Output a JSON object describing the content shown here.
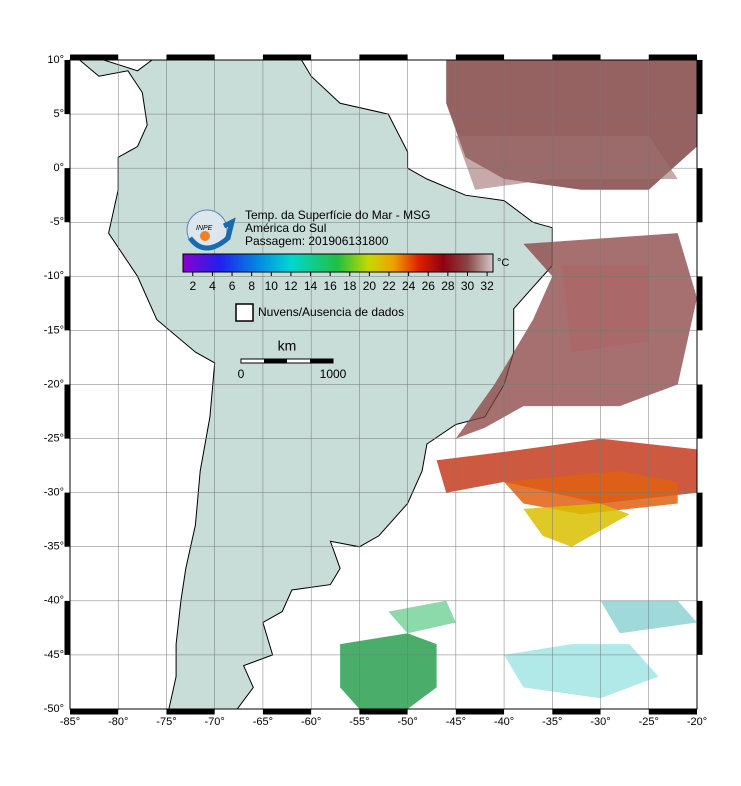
{
  "title_lines": [
    "Temp. da Superfície do Mar - MSG",
    "América do Sul",
    "Passagem: 201906131800"
  ],
  "logo": "INPE",
  "colorbar": {
    "unit": "°C",
    "range": [
      1,
      32.6
    ],
    "ticks": [
      2,
      4,
      6,
      8,
      10,
      12,
      14,
      16,
      18,
      20,
      22,
      24,
      26,
      28,
      30,
      32
    ]
  },
  "legend": {
    "no_data": "Nuvens/Ausencia de dados"
  },
  "scale_bar": {
    "unit": "km",
    "ticks": [
      0,
      1000
    ]
  },
  "map": {
    "lon_range": [
      -85,
      -20
    ],
    "lat_range": [
      10,
      -50
    ],
    "lon_ticks": [
      {
        "value": -85,
        "label": "-85°"
      },
      {
        "value": -80,
        "label": "-80°"
      },
      {
        "value": -75,
        "label": "-75°"
      },
      {
        "value": -70,
        "label": "-70°"
      },
      {
        "value": -65,
        "label": "-65°"
      },
      {
        "value": -60,
        "label": "-60°"
      },
      {
        "value": -55,
        "label": "-55°"
      },
      {
        "value": -50,
        "label": "-50°"
      },
      {
        "value": -45,
        "label": "-45°"
      },
      {
        "value": -40,
        "label": "-40°"
      },
      {
        "value": -35,
        "label": "-35°"
      },
      {
        "value": -30,
        "label": "-30°"
      },
      {
        "value": -25,
        "label": "-25°"
      },
      {
        "value": -20,
        "label": "-20°"
      }
    ],
    "lat_ticks": [
      {
        "value": 10,
        "label": "10°"
      },
      {
        "value": 5,
        "label": "5°"
      },
      {
        "value": 0,
        "label": "0°"
      },
      {
        "value": -5,
        "label": "-5°"
      },
      {
        "value": -10,
        "label": "-10°"
      },
      {
        "value": -15,
        "label": "-15°"
      },
      {
        "value": -20,
        "label": "-20°"
      },
      {
        "value": -25,
        "label": "-25°"
      },
      {
        "value": -30,
        "label": "-30°"
      },
      {
        "value": -35,
        "label": "-35°"
      },
      {
        "value": -40,
        "label": "-40°"
      },
      {
        "value": -45,
        "label": "-45°"
      },
      {
        "value": -50,
        "label": "-50°"
      }
    ]
  }
}
